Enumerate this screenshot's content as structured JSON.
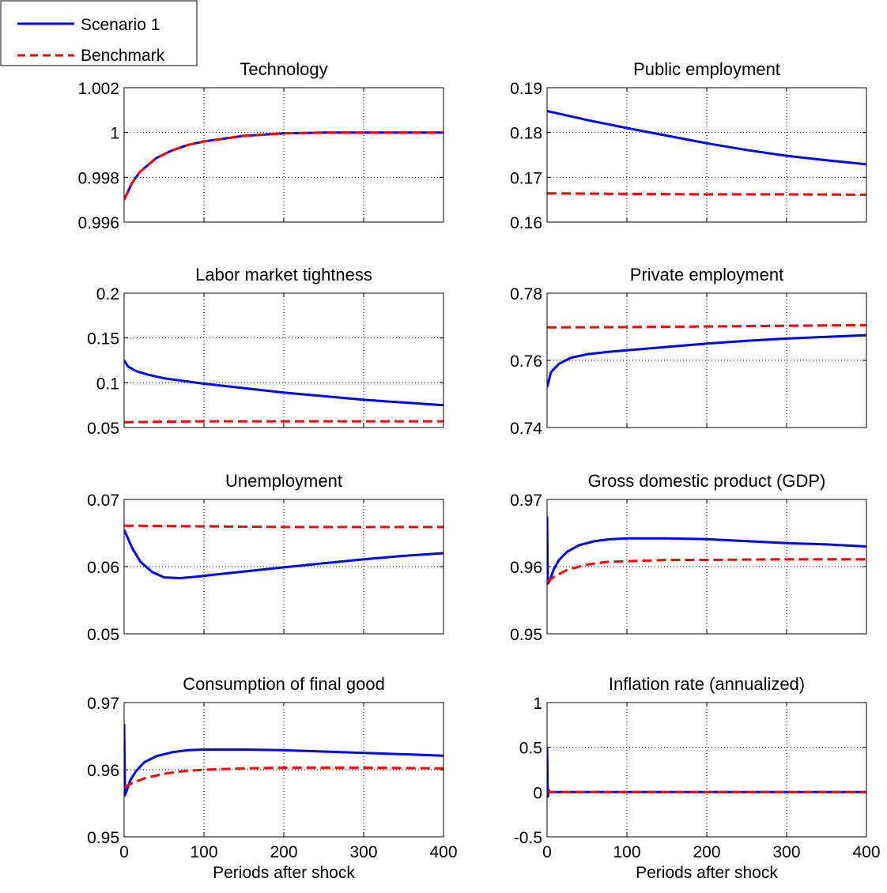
{
  "legend": {
    "entries": [
      {
        "label": "Scenario 1",
        "color": "#0000ff",
        "style": "solid"
      },
      {
        "label": "Benchmark",
        "color": "#ff0000",
        "style": "dashed"
      }
    ],
    "placement": "top-left"
  },
  "chart_data": [
    {
      "type": "line",
      "title": "Technology",
      "xlabel": "",
      "xlim": [
        0,
        400
      ],
      "ylim": [
        0.996,
        1.002
      ],
      "yticks": [
        "1.002",
        "1",
        "0.998",
        "0.996"
      ],
      "xticks": [],
      "grid": true,
      "series": [
        {
          "name": "Scenario 1",
          "x": [
            0,
            10,
            20,
            40,
            60,
            80,
            100,
            150,
            200,
            250,
            300,
            400
          ],
          "y": [
            0.997,
            0.99775,
            0.99825,
            0.99885,
            0.9992,
            0.99945,
            0.9996,
            0.99985,
            0.99996,
            1.0,
            1.0,
            1.0
          ]
        },
        {
          "name": "Benchmark",
          "x": [
            0,
            10,
            20,
            40,
            60,
            80,
            100,
            150,
            200,
            250,
            300,
            400
          ],
          "y": [
            0.997,
            0.99775,
            0.99825,
            0.99885,
            0.9992,
            0.99945,
            0.9996,
            0.99985,
            0.99996,
            1.0,
            1.0,
            1.0
          ]
        }
      ]
    },
    {
      "type": "line",
      "title": "Public employment",
      "xlabel": "",
      "xlim": [
        0,
        400
      ],
      "ylim": [
        0.16,
        0.19
      ],
      "yticks": [
        "0.19",
        "0.18",
        "0.17",
        "0.16"
      ],
      "xticks": [],
      "grid": true,
      "series": [
        {
          "name": "Scenario 1",
          "x": [
            0,
            50,
            100,
            150,
            200,
            250,
            300,
            350,
            400
          ],
          "y": [
            0.1848,
            0.1828,
            0.181,
            0.1793,
            0.1776,
            0.1761,
            0.1748,
            0.1738,
            0.1729
          ]
        },
        {
          "name": "Benchmark",
          "x": [
            0,
            100,
            200,
            300,
            400
          ],
          "y": [
            0.1664,
            0.1663,
            0.1662,
            0.1662,
            0.1661
          ]
        }
      ]
    },
    {
      "type": "line",
      "title": "Labor market tightness",
      "xlabel": "",
      "xlim": [
        0,
        400
      ],
      "ylim": [
        0.05,
        0.2
      ],
      "yticks": [
        "0.2",
        "0.15",
        "0.1",
        "0.05"
      ],
      "xticks": [],
      "grid": true,
      "series": [
        {
          "name": "Scenario 1",
          "x": [
            0,
            5,
            15,
            30,
            50,
            75,
            100,
            150,
            200,
            250,
            300,
            350,
            400
          ],
          "y": [
            0.125,
            0.118,
            0.113,
            0.109,
            0.105,
            0.102,
            0.099,
            0.094,
            0.089,
            0.085,
            0.081,
            0.078,
            0.075
          ]
        },
        {
          "name": "Benchmark",
          "x": [
            0,
            100,
            200,
            300,
            400
          ],
          "y": [
            0.056,
            0.057,
            0.057,
            0.057,
            0.057
          ]
        }
      ]
    },
    {
      "type": "line",
      "title": "Private employment",
      "xlabel": "",
      "xlim": [
        0,
        400
      ],
      "ylim": [
        0.74,
        0.78
      ],
      "yticks": [
        "0.78",
        "0.76",
        "0.74"
      ],
      "xticks": [],
      "grid": true,
      "series": [
        {
          "name": "Scenario 1",
          "x": [
            0,
            5,
            15,
            30,
            50,
            75,
            100,
            150,
            200,
            250,
            300,
            350,
            400
          ],
          "y": [
            0.752,
            0.7565,
            0.759,
            0.7608,
            0.7618,
            0.7625,
            0.763,
            0.764,
            0.765,
            0.7658,
            0.7665,
            0.767,
            0.7675
          ]
        },
        {
          "name": "Benchmark",
          "x": [
            0,
            100,
            200,
            300,
            400
          ],
          "y": [
            0.7698,
            0.7699,
            0.7701,
            0.7703,
            0.7705
          ]
        }
      ]
    },
    {
      "type": "line",
      "title": "Unemployment",
      "xlabel": "",
      "xlim": [
        0,
        400
      ],
      "ylim": [
        0.05,
        0.07
      ],
      "yticks": [
        "0.07",
        "0.06",
        "0.05"
      ],
      "xticks": [],
      "grid": true,
      "series": [
        {
          "name": "Scenario 1",
          "x": [
            0,
            10,
            20,
            35,
            50,
            70,
            90,
            120,
            160,
            200,
            250,
            300,
            350,
            400
          ],
          "y": [
            0.0655,
            0.0628,
            0.0608,
            0.0592,
            0.0584,
            0.0583,
            0.0585,
            0.0589,
            0.0594,
            0.0599,
            0.0605,
            0.0611,
            0.0616,
            0.062
          ]
        },
        {
          "name": "Benchmark",
          "x": [
            0,
            100,
            200,
            300,
            400
          ],
          "y": [
            0.0661,
            0.066,
            0.0659,
            0.0659,
            0.0659
          ]
        }
      ]
    },
    {
      "type": "line",
      "title": "Gross domestic product (GDP)",
      "xlabel": "",
      "xlim": [
        0,
        400
      ],
      "ylim": [
        0.95,
        0.97
      ],
      "yticks": [
        "0.97",
        "0.96",
        "0.95"
      ],
      "xticks": [],
      "grid": true,
      "series": [
        {
          "name": "Scenario 1",
          "x": [
            0,
            1,
            3,
            8,
            15,
            25,
            40,
            60,
            80,
            100,
            150,
            200,
            250,
            300,
            350,
            400
          ],
          "y": [
            0.9675,
            0.9575,
            0.9578,
            0.9595,
            0.961,
            0.9622,
            0.9632,
            0.9638,
            0.9641,
            0.9642,
            0.9642,
            0.9641,
            0.9638,
            0.9635,
            0.9633,
            0.963
          ]
        },
        {
          "name": "Benchmark",
          "x": [
            0,
            10,
            25,
            50,
            75,
            100,
            150,
            200,
            300,
            400
          ],
          "y": [
            0.9577,
            0.9586,
            0.9595,
            0.9603,
            0.9607,
            0.9608,
            0.961,
            0.961,
            0.9611,
            0.9611
          ]
        }
      ]
    },
    {
      "type": "line",
      "title": "Consumption of final good",
      "xlabel": "Periods after shock",
      "xlim": [
        0,
        400
      ],
      "ylim": [
        0.95,
        0.97
      ],
      "yticks": [
        "0.97",
        "0.96",
        "0.95"
      ],
      "xticks": [
        "0",
        "100",
        "200",
        "300",
        "400"
      ],
      "grid": true,
      "series": [
        {
          "name": "Scenario 1",
          "x": [
            0,
            1,
            3,
            8,
            15,
            25,
            40,
            60,
            80,
            100,
            150,
            200,
            250,
            300,
            350,
            400
          ],
          "y": [
            0.9668,
            0.9562,
            0.9568,
            0.9585,
            0.9598,
            0.9611,
            0.962,
            0.9626,
            0.9629,
            0.963,
            0.963,
            0.9629,
            0.9627,
            0.9625,
            0.9623,
            0.9621
          ]
        },
        {
          "name": "Benchmark",
          "x": [
            0,
            10,
            25,
            50,
            75,
            100,
            150,
            200,
            300,
            400
          ],
          "y": [
            0.9574,
            0.958,
            0.9587,
            0.9594,
            0.9598,
            0.96,
            0.9602,
            0.9603,
            0.9603,
            0.9602
          ]
        }
      ]
    },
    {
      "type": "line",
      "title": "Inflation rate (annualized)",
      "xlabel": "Periods after shock",
      "xlim": [
        0,
        400
      ],
      "ylim": [
        -0.5,
        1
      ],
      "yticks": [
        "1",
        "0.5",
        "0",
        "-0.5"
      ],
      "xticks": [
        "0",
        "100",
        "200",
        "300",
        "400"
      ],
      "grid": true,
      "series": [
        {
          "name": "Scenario 1",
          "x": [
            0,
            1,
            2,
            3,
            5,
            10,
            100,
            200,
            300,
            400
          ],
          "y": [
            0.5,
            -0.05,
            0.02,
            0.0,
            0.0,
            0.0,
            0.0,
            0.0,
            0.0,
            0.0
          ]
        },
        {
          "name": "Benchmark",
          "x": [
            0,
            100,
            200,
            300,
            400
          ],
          "y": [
            0.0,
            0.0,
            0.0,
            0.0,
            0.0
          ]
        }
      ]
    }
  ]
}
